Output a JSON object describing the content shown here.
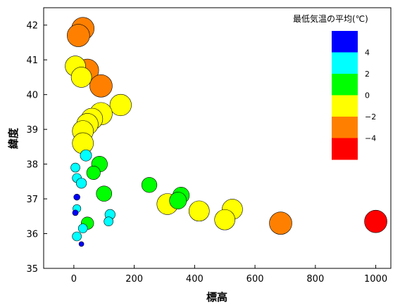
{
  "chart_data": {
    "type": "scatter",
    "xlabel": "標高",
    "ylabel": "緯度",
    "xlim": [
      -100,
      1050
    ],
    "ylim": [
      35,
      42.5
    ],
    "xticks": [
      0,
      200,
      400,
      600,
      800,
      1000
    ],
    "yticks": [
      35,
      36,
      37,
      38,
      39,
      40,
      41,
      42
    ],
    "grid": false,
    "legend": {
      "title": "最低気温の平均(℃)",
      "placement": "top-right",
      "bands": [
        {
          "label": "4",
          "color": "#0000ff"
        },
        {
          "label": "2",
          "color": "#00ffff"
        },
        {
          "label": "0",
          "color": "#00ff00"
        },
        {
          "label": "−2",
          "color": "#ffff00"
        },
        {
          "label": "−4",
          "color": "#ff8000"
        },
        {
          "label": "",
          "color": "#ff0000"
        }
      ]
    },
    "points": [
      {
        "x": 30,
        "y": 41.9,
        "temp": -4.8,
        "color": "#ff8000"
      },
      {
        "x": 15,
        "y": 41.7,
        "temp": -4.5,
        "color": "#ff8000"
      },
      {
        "x": 45,
        "y": 40.7,
        "temp": -4.0,
        "color": "#ff8000"
      },
      {
        "x": 90,
        "y": 40.25,
        "temp": -4.2,
        "color": "#ff8000"
      },
      {
        "x": 685,
        "y": 36.3,
        "temp": -4.0,
        "color": "#ff8000"
      },
      {
        "x": 1000,
        "y": 36.35,
        "temp": -5.5,
        "color": "#ff0000"
      },
      {
        "x": 5,
        "y": 40.82,
        "temp": -2.5,
        "color": "#ffff00"
      },
      {
        "x": 25,
        "y": 40.5,
        "temp": -2.5,
        "color": "#ffff00"
      },
      {
        "x": 155,
        "y": 39.7,
        "temp": -3.0,
        "color": "#ffff00"
      },
      {
        "x": 90,
        "y": 39.45,
        "temp": -3.5,
        "color": "#ffff00"
      },
      {
        "x": 60,
        "y": 39.3,
        "temp": -3.0,
        "color": "#ffff00"
      },
      {
        "x": 45,
        "y": 39.15,
        "temp": -3.0,
        "color": "#ffff00"
      },
      {
        "x": 30,
        "y": 38.95,
        "temp": -2.8,
        "color": "#ffff00"
      },
      {
        "x": 30,
        "y": 38.6,
        "temp": -2.8,
        "color": "#ffff00"
      },
      {
        "x": 310,
        "y": 36.85,
        "temp": -2.8,
        "color": "#ffff00"
      },
      {
        "x": 415,
        "y": 36.65,
        "temp": -2.5,
        "color": "#ffff00"
      },
      {
        "x": 525,
        "y": 36.7,
        "temp": -2.5,
        "color": "#ffff00"
      },
      {
        "x": 500,
        "y": 36.4,
        "temp": -2.5,
        "color": "#ffff00"
      },
      {
        "x": 85,
        "y": 38.0,
        "temp": -0.5,
        "color": "#00ff00"
      },
      {
        "x": 65,
        "y": 37.75,
        "temp": 0.5,
        "color": "#00ff00"
      },
      {
        "x": 250,
        "y": 37.4,
        "temp": -0.2,
        "color": "#00ff00"
      },
      {
        "x": 100,
        "y": 37.15,
        "temp": -0.3,
        "color": "#00ff00"
      },
      {
        "x": 355,
        "y": 37.1,
        "temp": -0.8,
        "color": "#00ff00"
      },
      {
        "x": 345,
        "y": 36.95,
        "temp": -1.0,
        "color": "#00ff00"
      },
      {
        "x": 45,
        "y": 36.3,
        "temp": 1.0,
        "color": "#00ff00"
      },
      {
        "x": 40,
        "y": 38.25,
        "temp": 1.5,
        "color": "#00ffff"
      },
      {
        "x": 5,
        "y": 37.9,
        "temp": 2.5,
        "color": "#00ffff"
      },
      {
        "x": 10,
        "y": 37.6,
        "temp": 2.5,
        "color": "#00ffff"
      },
      {
        "x": 25,
        "y": 37.45,
        "temp": 2.0,
        "color": "#00ffff"
      },
      {
        "x": 120,
        "y": 36.55,
        "temp": 2.0,
        "color": "#00ffff"
      },
      {
        "x": 115,
        "y": 36.35,
        "temp": 2.5,
        "color": "#00ffff"
      },
      {
        "x": 30,
        "y": 36.15,
        "temp": 2.5,
        "color": "#00ffff"
      },
      {
        "x": 10,
        "y": 36.72,
        "temp": 3.0,
        "color": "#00ffff"
      },
      {
        "x": 10,
        "y": 35.92,
        "temp": 2.5,
        "color": "#00ffff"
      },
      {
        "x": 10,
        "y": 37.05,
        "temp": 3.8,
        "color": "#0000ff"
      },
      {
        "x": 5,
        "y": 36.6,
        "temp": 4.0,
        "color": "#0000ff"
      },
      {
        "x": 25,
        "y": 35.7,
        "temp": 5.0,
        "color": "#0000ff"
      }
    ]
  }
}
